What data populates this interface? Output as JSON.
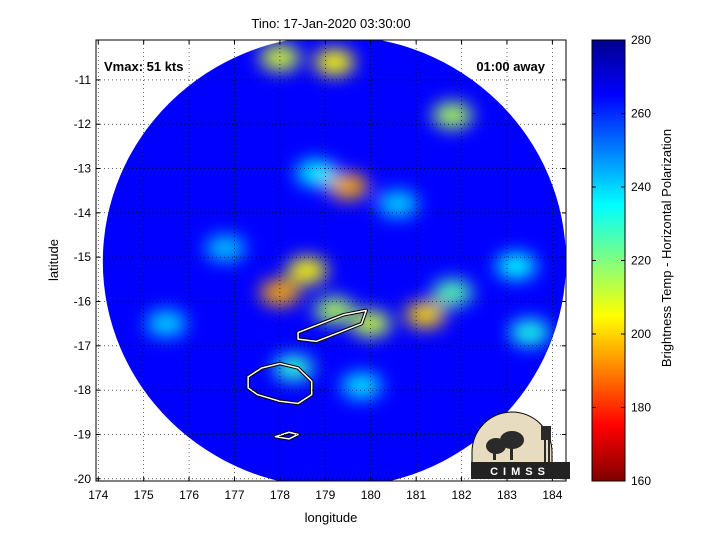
{
  "chart_data": {
    "type": "heatmap",
    "title": "Tino: 17-Jan-2020 03:30:00",
    "xlabel": "longitude",
    "ylabel": "latitude",
    "xlim": [
      173.95,
      184.3
    ],
    "ylim": [
      -20.05,
      -10.1
    ],
    "xticks": [
      174,
      175,
      176,
      177,
      178,
      179,
      180,
      181,
      182,
      183,
      184
    ],
    "yticks": [
      -11,
      -12,
      -13,
      -14,
      -15,
      -16,
      -17,
      -18,
      -19,
      -20
    ],
    "grid": true,
    "annotations": {
      "vmax": "Vmax: 51 kts",
      "time_away": "01:00 away"
    },
    "colorbar": {
      "label": "Brightness Temp - Horizontal Polarization",
      "range": [
        160,
        280
      ],
      "ticks": [
        280,
        260,
        240,
        220,
        200,
        180,
        160
      ],
      "colormap": [
        "#7f0000",
        "#ff0000",
        "#ff8000",
        "#ffff00",
        "#80ff80",
        "#00ffff",
        "#0080ff",
        "#0000ff",
        "#00008f"
      ]
    },
    "swath": {
      "center_lon": 179.2,
      "center_lat": -15.1,
      "radius_deg": 5.1,
      "background_tb": 265
    },
    "features": [
      {
        "lon": 178.0,
        "lat": -15.8,
        "tb": 195
      },
      {
        "lon": 178.6,
        "lat": -15.3,
        "tb": 205
      },
      {
        "lon": 179.2,
        "lat": -16.2,
        "tb": 215
      },
      {
        "lon": 180.0,
        "lat": -16.5,
        "tb": 212
      },
      {
        "lon": 181.2,
        "lat": -16.3,
        "tb": 200
      },
      {
        "lon": 181.8,
        "lat": -15.8,
        "tb": 225
      },
      {
        "lon": 179.5,
        "lat": -13.4,
        "tb": 195
      },
      {
        "lon": 178.8,
        "lat": -13.1,
        "tb": 235
      },
      {
        "lon": 180.6,
        "lat": -13.8,
        "tb": 240
      },
      {
        "lon": 178.0,
        "lat": -10.5,
        "tb": 210
      },
      {
        "lon": 179.2,
        "lat": -10.6,
        "tb": 205
      },
      {
        "lon": 181.8,
        "lat": -11.8,
        "tb": 215
      },
      {
        "lon": 183.2,
        "lat": -15.2,
        "tb": 235
      },
      {
        "lon": 183.5,
        "lat": -16.7,
        "tb": 232
      },
      {
        "lon": 178.3,
        "lat": -17.5,
        "tb": 230
      },
      {
        "lon": 179.8,
        "lat": -17.9,
        "tb": 238
      },
      {
        "lon": 176.8,
        "lat": -14.8,
        "tb": 242
      },
      {
        "lon": 175.5,
        "lat": -16.5,
        "tb": 240
      }
    ],
    "coastlines": [
      {
        "name": "viti-levu",
        "lon": [
          177.3,
          177.6,
          178.0,
          178.4,
          178.7,
          178.7,
          178.4,
          178.0,
          177.5,
          177.3,
          177.3
        ],
        "lat": [
          -17.7,
          -17.5,
          -17.4,
          -17.5,
          -17.8,
          -18.1,
          -18.3,
          -18.25,
          -18.1,
          -17.95,
          -17.7
        ]
      },
      {
        "name": "vanua-levu",
        "lon": [
          178.4,
          178.9,
          179.4,
          179.9,
          179.8,
          179.3,
          178.8,
          178.4,
          178.4
        ],
        "lat": [
          -16.7,
          -16.5,
          -16.3,
          -16.2,
          -16.5,
          -16.7,
          -16.9,
          -16.85,
          -16.7
        ]
      },
      {
        "name": "kadavu",
        "lon": [
          177.9,
          178.2,
          178.4,
          178.2,
          177.9
        ],
        "lat": [
          -19.05,
          -18.95,
          -19.0,
          -19.1,
          -19.05
        ]
      }
    ],
    "logo": "CIMSS"
  }
}
